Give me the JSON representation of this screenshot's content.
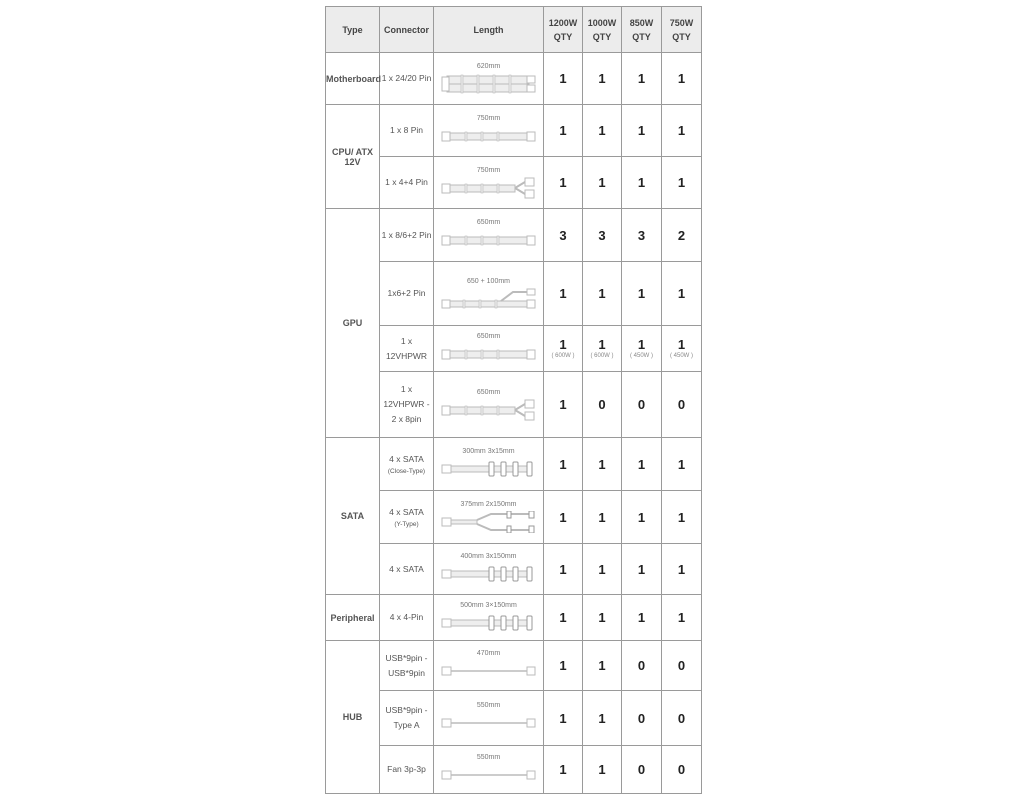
{
  "headers": [
    "Type",
    "Connector",
    "Length",
    "1200W QTY",
    "1000W QTY",
    "850W QTY",
    "750W QTY"
  ],
  "groups": [
    {
      "type": "Motherboard",
      "rows": [
        {
          "connector": "1 x 24/20 Pin",
          "sub": "",
          "length": "620mm",
          "cable": "wide",
          "qty": [
            "1",
            "1",
            "1",
            "1"
          ],
          "notes": []
        }
      ]
    },
    {
      "type": "CPU/ ATX 12V",
      "rows": [
        {
          "connector": "1 x 8 Pin",
          "sub": "",
          "length": "750mm",
          "cable": "single",
          "qty": [
            "1",
            "1",
            "1",
            "1"
          ],
          "notes": []
        },
        {
          "connector": "1 x 4+4 Pin",
          "sub": "",
          "length": "750mm",
          "cable": "split",
          "qty": [
            "1",
            "1",
            "1",
            "1"
          ],
          "notes": []
        }
      ]
    },
    {
      "type": "GPU",
      "rows": [
        {
          "connector": "1 x 8/6+2 Pin",
          "sub": "",
          "length": "650mm",
          "cable": "single",
          "qty": [
            "3",
            "3",
            "3",
            "2"
          ],
          "notes": []
        },
        {
          "connector": "1x6+2 Pin",
          "sub": "",
          "length": "650 + 100mm",
          "cable": "branch",
          "qty": [
            "1",
            "1",
            "1",
            "1"
          ],
          "notes": []
        },
        {
          "connector": "1 x 12VHPWR",
          "sub": "",
          "length": "650mm",
          "cable": "single",
          "qty": [
            "1",
            "1",
            "1",
            "1"
          ],
          "notes": [
            "( 600W )",
            "( 600W )",
            "( 450W )",
            "( 450W )"
          ]
        },
        {
          "connector": "1 x 12VHPWR - 2 x 8pin",
          "sub": "",
          "length": "650mm",
          "cable": "split",
          "qty": [
            "1",
            "0",
            "0",
            "0"
          ],
          "notes": []
        }
      ]
    },
    {
      "type": "SATA",
      "rows": [
        {
          "connector": "4 x SATA",
          "sub": "(Close-Type)",
          "length": "300mm 3x15mm",
          "cable": "sata",
          "qty": [
            "1",
            "1",
            "1",
            "1"
          ],
          "notes": []
        },
        {
          "connector": "4 x SATA",
          "sub": "(Y-Type)",
          "length": "375mm 2x150mm",
          "cable": "ysata",
          "qty": [
            "1",
            "1",
            "1",
            "1"
          ],
          "notes": []
        },
        {
          "connector": "4 x SATA",
          "sub": "",
          "length": "400mm 3x150mm",
          "cable": "sata",
          "qty": [
            "1",
            "1",
            "1",
            "1"
          ],
          "notes": []
        }
      ]
    },
    {
      "type": "Peripheral",
      "rows": [
        {
          "connector": "4 x 4-Pin",
          "sub": "",
          "length": "500mm   3×150mm",
          "cable": "sata",
          "qty": [
            "1",
            "1",
            "1",
            "1"
          ],
          "notes": []
        }
      ]
    },
    {
      "type": "HUB",
      "rows": [
        {
          "connector": "USB*9pin - USB*9pin",
          "sub": "",
          "length": "470mm",
          "cable": "thin",
          "qty": [
            "1",
            "1",
            "0",
            "0"
          ],
          "notes": []
        },
        {
          "connector": "USB*9pin - Type A",
          "sub": "",
          "length": "550mm",
          "cable": "thin",
          "qty": [
            "1",
            "1",
            "0",
            "0"
          ],
          "notes": []
        },
        {
          "connector": "Fan 3p-3p",
          "sub": "",
          "length": "550mm",
          "cable": "thin",
          "qty": [
            "1",
            "1",
            "0",
            "0"
          ],
          "notes": []
        }
      ]
    }
  ],
  "colors": {
    "border": "#9a9a9a",
    "header_bg": "#ececec",
    "cable": "#cfcfcf"
  }
}
